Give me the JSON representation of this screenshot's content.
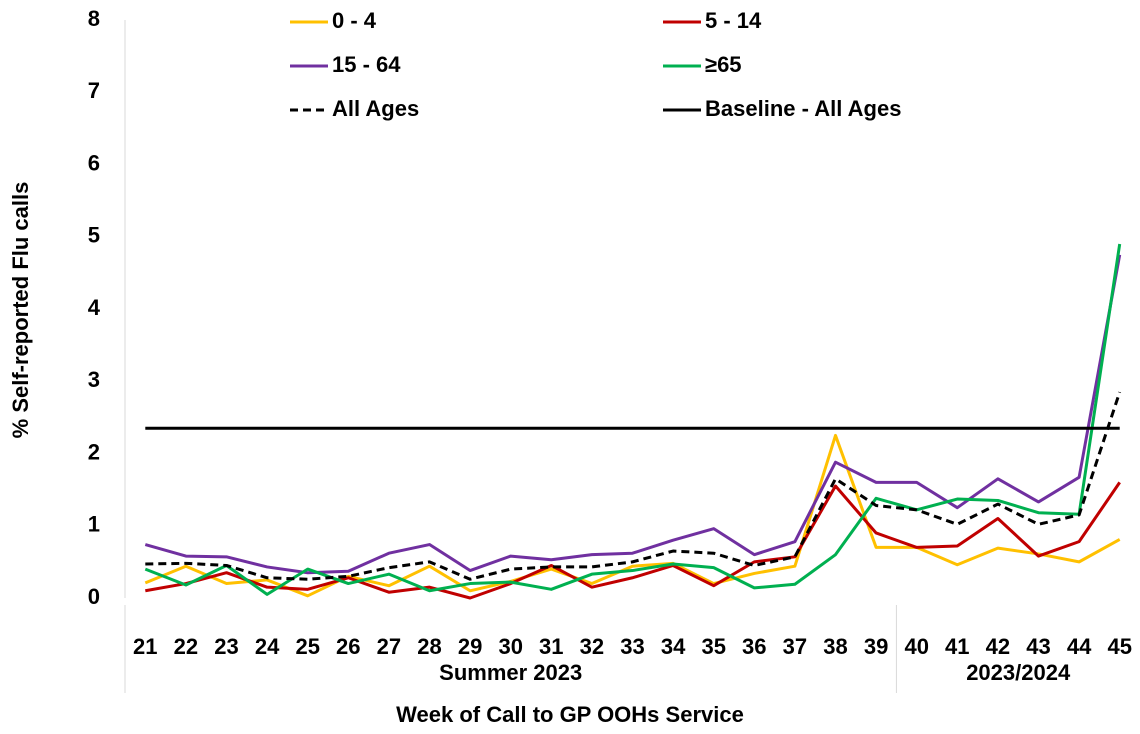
{
  "chart_data": {
    "type": "line",
    "ylabel": "% Self-reported Flu calls",
    "xlabel": "Week of Call to GP OOHs Service",
    "categories": [
      "21",
      "22",
      "23",
      "24",
      "25",
      "26",
      "27",
      "28",
      "29",
      "30",
      "31",
      "32",
      "33",
      "34",
      "35",
      "36",
      "37",
      "38",
      "39",
      "40",
      "41",
      "42",
      "43",
      "44",
      "45"
    ],
    "groups": [
      {
        "label": "Summer 2023",
        "start": "21",
        "end": "39"
      },
      {
        "label": "2023/2024",
        "start": "40",
        "end": "45"
      }
    ],
    "ylim": [
      0,
      8
    ],
    "yticks": [
      0,
      1,
      2,
      3,
      4,
      5,
      6,
      7,
      8
    ],
    "grid": false,
    "series": [
      {
        "name": "0 - 4",
        "color": "#FFC000",
        "dash": false,
        "values": [
          0.21,
          0.44,
          0.2,
          0.25,
          0.03,
          0.3,
          0.17,
          0.44,
          0.1,
          0.23,
          0.4,
          0.2,
          0.44,
          0.48,
          0.2,
          0.34,
          0.44,
          2.25,
          0.7,
          0.7,
          0.46,
          0.69,
          0.61,
          0.5,
          0.81
        ]
      },
      {
        "name": "5 - 14",
        "color": "#C00000",
        "dash": false,
        "values": [
          0.1,
          0.2,
          0.35,
          0.15,
          0.12,
          0.28,
          0.08,
          0.15,
          0.0,
          0.2,
          0.45,
          0.15,
          0.28,
          0.45,
          0.17,
          0.5,
          0.57,
          1.55,
          0.9,
          0.7,
          0.72,
          1.1,
          0.58,
          0.78,
          1.6
        ]
      },
      {
        "name": "15 - 64",
        "color": "#7030A0",
        "dash": false,
        "values": [
          0.74,
          0.58,
          0.57,
          0.43,
          0.35,
          0.37,
          0.62,
          0.74,
          0.38,
          0.58,
          0.53,
          0.6,
          0.62,
          0.8,
          0.96,
          0.6,
          0.78,
          1.88,
          1.6,
          1.6,
          1.25,
          1.65,
          1.33,
          1.67,
          4.75
        ]
      },
      {
        "name": "≥65",
        "color": "#00B050",
        "dash": false,
        "values": [
          0.4,
          0.18,
          0.45,
          0.05,
          0.4,
          0.2,
          0.33,
          0.1,
          0.2,
          0.22,
          0.12,
          0.33,
          0.38,
          0.47,
          0.42,
          0.14,
          0.19,
          0.6,
          1.38,
          1.22,
          1.37,
          1.35,
          1.18,
          1.16,
          4.9
        ]
      },
      {
        "name": "All Ages",
        "color": "#000000",
        "dash": true,
        "values": [
          0.47,
          0.48,
          0.45,
          0.28,
          0.26,
          0.3,
          0.42,
          0.5,
          0.26,
          0.4,
          0.43,
          0.43,
          0.5,
          0.65,
          0.62,
          0.45,
          0.57,
          1.65,
          1.28,
          1.22,
          1.02,
          1.3,
          1.02,
          1.15,
          2.85
        ]
      },
      {
        "name": "Baseline - All Ages",
        "color": "#000000",
        "dash": false,
        "values": [
          2.35,
          2.35,
          2.35,
          2.35,
          2.35,
          2.35,
          2.35,
          2.35,
          2.35,
          2.35,
          2.35,
          2.35,
          2.35,
          2.35,
          2.35,
          2.35,
          2.35,
          2.35,
          2.35,
          2.35,
          2.35,
          2.35,
          2.35,
          2.35,
          2.35
        ]
      }
    ]
  }
}
